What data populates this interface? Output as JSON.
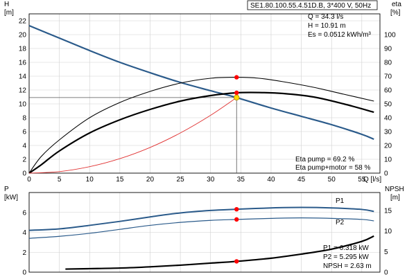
{
  "title": "SE1.80.100.55.4.51D.B, 3*400 V, 50Hz",
  "duty": {
    "q": "Q = 34.3 l/s",
    "h": "H = 10.91 m",
    "es": "Es = 0.0512 kWh/m³"
  },
  "eta": {
    "pump": "Eta pump = 69.2 %",
    "pump_motor": "Eta pump+motor = 58 %"
  },
  "power_readout": {
    "p1": "P1 = 6.318 kW",
    "p2": "P2 = 5.295 kW",
    "npsh": "NPSH = 2.63 m"
  },
  "colors": {
    "head_curve": "#2a5a8a",
    "eta_curves": "#000000",
    "system_curve": "#e03030",
    "duty_marker": "#ff0000",
    "duty_point": "#ffd700",
    "power_curves": "#2a5a8a",
    "npsh_curve": "#000000",
    "grid": "#cfcfcf"
  },
  "chart_data": [
    {
      "type": "line",
      "x_axis": {
        "label": "Q [l/s]",
        "range": [
          0,
          58
        ],
        "ticks": [
          0,
          5,
          10,
          15,
          20,
          25,
          30,
          35,
          40,
          45,
          50,
          55
        ]
      },
      "y_left": {
        "label": "H",
        "unit": "[m]",
        "range": [
          0,
          23
        ],
        "ticks": [
          0,
          2,
          4,
          6,
          8,
          10,
          12,
          14,
          16,
          18,
          20,
          22
        ]
      },
      "y_right": {
        "label": "eta",
        "unit": "[%]",
        "range": [
          0,
          115
        ],
        "ticks": [
          0,
          10,
          20,
          30,
          40,
          50,
          60,
          70,
          80,
          90,
          100
        ]
      },
      "grid": true,
      "series": [
        {
          "axis": "left",
          "role": "head",
          "x": [
            0,
            5,
            10,
            15,
            20,
            25,
            30,
            34.3,
            40,
            45,
            50,
            55,
            57
          ],
          "y": [
            21.3,
            19.5,
            17.7,
            16.0,
            14.5,
            13.1,
            11.9,
            10.91,
            9.4,
            8.2,
            7.0,
            5.6,
            4.9
          ]
        },
        {
          "axis": "right",
          "role": "eta_pump",
          "x": [
            0,
            2,
            5,
            10,
            15,
            20,
            25,
            30,
            34.3,
            38,
            42,
            47,
            52,
            57
          ],
          "y": [
            0,
            12,
            24,
            40,
            51,
            59,
            65,
            68.5,
            69.2,
            68.5,
            66,
            62,
            57,
            52
          ]
        },
        {
          "axis": "right",
          "role": "eta_pump_motor",
          "x": [
            0,
            2,
            5,
            10,
            15,
            20,
            25,
            30,
            34.3,
            38,
            42,
            47,
            52,
            57
          ],
          "y": [
            0,
            6,
            16,
            29,
            38.5,
            46,
            52,
            56,
            58,
            58.2,
            57.5,
            55,
            50,
            44
          ]
        },
        {
          "axis": "left",
          "role": "system",
          "x": [
            0,
            5,
            10,
            15,
            20,
            25,
            30,
            34.3
          ],
          "y": [
            0,
            0.22,
            0.93,
            2.09,
            3.71,
            5.8,
            8.35,
            10.91
          ]
        }
      ],
      "markers": [
        {
          "axis": "right",
          "x": 34.3,
          "y": 69.2
        },
        {
          "axis": "right",
          "x": 34.3,
          "y": 58
        },
        {
          "axis": "left",
          "x": 34.3,
          "y": 10.91
        }
      ]
    },
    {
      "type": "line",
      "x_axis": {
        "range": [
          0,
          58
        ]
      },
      "y_left": {
        "label": "P",
        "unit": "[kW]",
        "range": [
          0,
          8
        ],
        "ticks": [
          0,
          2,
          4,
          6
        ]
      },
      "y_right": {
        "label": "NPSH",
        "unit": "[m]",
        "range": [
          0,
          19.4
        ],
        "ticks": [
          0,
          5,
          10,
          15
        ]
      },
      "grid": true,
      "series": [
        {
          "name": "P1",
          "axis": "left",
          "x": [
            0,
            5,
            10,
            15,
            20,
            25,
            30,
            34.3,
            40,
            45,
            50,
            55,
            57
          ],
          "y": [
            4.2,
            4.35,
            4.7,
            5.1,
            5.55,
            5.95,
            6.2,
            6.318,
            6.45,
            6.5,
            6.45,
            6.3,
            6.1
          ]
        },
        {
          "name": "P2",
          "axis": "left",
          "x": [
            0,
            5,
            10,
            15,
            20,
            25,
            30,
            34.3,
            40,
            45,
            50,
            55,
            57
          ],
          "y": [
            3.4,
            3.6,
            3.9,
            4.3,
            4.7,
            5.0,
            5.2,
            5.295,
            5.4,
            5.45,
            5.4,
            5.3,
            5.15
          ]
        },
        {
          "axis": "right",
          "role": "npsh",
          "x": [
            6,
            10,
            15,
            20,
            25,
            30,
            34.3,
            40,
            45,
            50,
            55,
            57
          ],
          "y": [
            0.75,
            0.85,
            1.0,
            1.3,
            1.7,
            2.2,
            2.63,
            3.4,
            4.4,
            5.6,
            7.5,
            8.8
          ]
        }
      ],
      "markers": [
        {
          "axis": "left",
          "x": 34.3,
          "y": 6.318
        },
        {
          "axis": "left",
          "x": 34.3,
          "y": 5.295
        },
        {
          "axis": "right",
          "x": 34.3,
          "y": 2.63
        }
      ]
    }
  ]
}
